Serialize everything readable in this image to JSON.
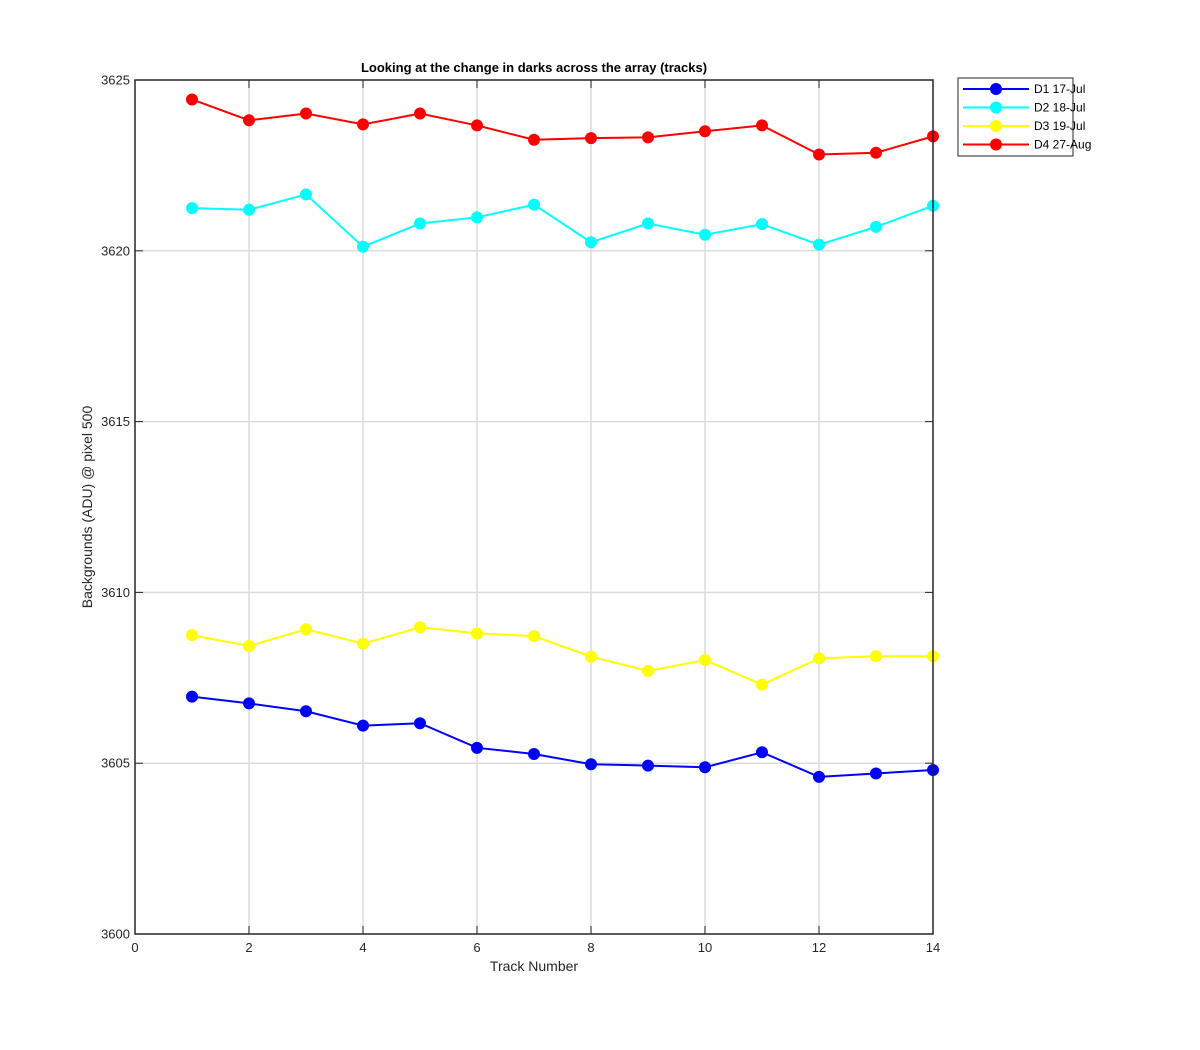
{
  "chart_data": {
    "type": "line",
    "title": "Looking at the change in darks across the array (tracks)",
    "xlabel": "Track Number",
    "ylabel": "Backgrounds (ADU) @ pixel 500",
    "xlim": [
      0,
      14
    ],
    "ylim": [
      3600,
      3625
    ],
    "xticks": [
      0,
      2,
      4,
      6,
      8,
      10,
      12,
      14
    ],
    "yticks": [
      3600,
      3605,
      3610,
      3615,
      3620,
      3625
    ],
    "grid": true,
    "legend_position": "outside top-right",
    "x": [
      1,
      2,
      3,
      4,
      5,
      6,
      7,
      8,
      9,
      10,
      11,
      12,
      13,
      14
    ],
    "series": [
      {
        "name": "D1 17-Jul",
        "color": "#0000ff",
        "marker": "circle",
        "values": [
          3606.95,
          3606.75,
          3606.52,
          3606.1,
          3606.17,
          3605.45,
          3605.27,
          3604.97,
          3604.93,
          3604.88,
          3605.32,
          3604.6,
          3604.7,
          3604.8
        ]
      },
      {
        "name": "D2 18-Jul",
        "color": "#00ffff",
        "marker": "circle",
        "values": [
          3621.25,
          3621.2,
          3621.65,
          3620.12,
          3620.8,
          3620.98,
          3621.35,
          3620.25,
          3620.8,
          3620.47,
          3620.78,
          3620.18,
          3620.7,
          3621.32
        ]
      },
      {
        "name": "D3 19-Jul",
        "color": "#ffff00",
        "marker": "circle",
        "values": [
          3608.75,
          3608.43,
          3608.92,
          3608.5,
          3608.98,
          3608.8,
          3608.72,
          3608.12,
          3607.7,
          3608.02,
          3607.3,
          3608.07,
          3608.13,
          3608.13
        ]
      },
      {
        "name": "D4 27-Aug",
        "color": "#ff0000",
        "marker": "circle",
        "values": [
          3624.43,
          3623.82,
          3624.02,
          3623.7,
          3624.02,
          3623.67,
          3623.25,
          3623.3,
          3623.32,
          3623.5,
          3623.67,
          3622.82,
          3622.87,
          3623.35
        ]
      }
    ]
  }
}
